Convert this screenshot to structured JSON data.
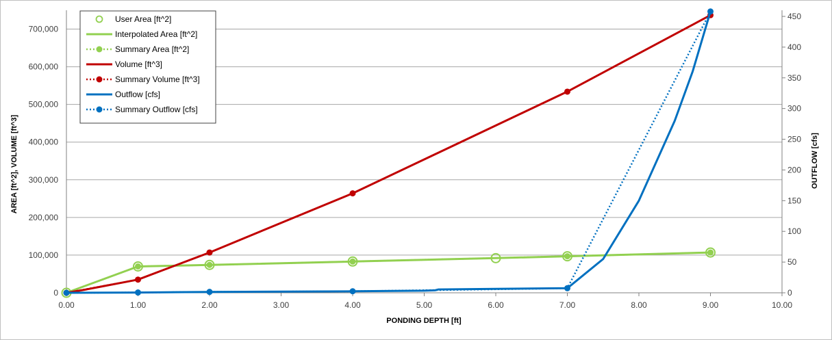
{
  "chart_data": {
    "type": "line",
    "xlabel": "PONDING DEPTH [ft]",
    "ylabel_left": "AREA [ft^2], VOLUME [ft^3]",
    "ylabel_right": "OUTFLOW [cfs]",
    "xlim": [
      0,
      10
    ],
    "ylim_left": [
      0,
      750000
    ],
    "ylim_right": [
      0,
      460
    ],
    "x_ticks": [
      "0.00",
      "1.00",
      "2.00",
      "3.00",
      "4.00",
      "5.00",
      "6.00",
      "7.00",
      "8.00",
      "9.00",
      "10.00"
    ],
    "y_left_ticks": [
      "0",
      "100,000",
      "200,000",
      "300,000",
      "400,000",
      "500,000",
      "600,000",
      "700,000"
    ],
    "y_right_ticks": [
      "0",
      "50",
      "100",
      "150",
      "200",
      "250",
      "300",
      "350",
      "400",
      "450"
    ],
    "grid": "horizontal",
    "legend_position": "top-left",
    "colors": {
      "area": "#92d050",
      "volume": "#c00000",
      "outflow": "#0070c0"
    },
    "series": [
      {
        "name": "User Area [ft^2]",
        "axis": "left",
        "style": "markers-open",
        "x": [
          0,
          1,
          2,
          4,
          6,
          7,
          9
        ],
        "y": [
          0,
          70000,
          74000,
          83000,
          92000,
          97000,
          107000
        ]
      },
      {
        "name": "Interpolated Area [ft^2]",
        "axis": "left",
        "style": "solid",
        "x": [
          0,
          1,
          2,
          4,
          6,
          7,
          9
        ],
        "y": [
          0,
          70000,
          74000,
          83000,
          92000,
          97000,
          107000
        ]
      },
      {
        "name": "Summary Area [ft^2]",
        "axis": "left",
        "style": "dotted-markers",
        "x": [
          0,
          1,
          2,
          4,
          7,
          9
        ],
        "y": [
          0,
          70000,
          74000,
          83000,
          97000,
          107000
        ]
      },
      {
        "name": "Volume [ft^3]",
        "axis": "left",
        "style": "solid",
        "x": [
          0,
          0.25,
          0.5,
          0.75,
          1,
          2,
          4,
          7,
          9
        ],
        "y": [
          0,
          8000,
          17000,
          26000,
          35000,
          107000,
          264000,
          534000,
          737000
        ]
      },
      {
        "name": "Summary Volume [ft^3]",
        "axis": "left",
        "style": "dotted-markers",
        "x": [
          0,
          1,
          2,
          4,
          7,
          9
        ],
        "y": [
          0,
          35000,
          107000,
          264000,
          534000,
          737000
        ]
      },
      {
        "name": "Outflow [cfs]",
        "axis": "right",
        "style": "solid",
        "x": [
          0,
          1,
          2,
          4,
          5,
          5.15,
          5.2,
          6,
          7,
          7.5,
          8,
          8.5,
          8.75,
          9
        ],
        "y": [
          0,
          0.5,
          1.5,
          2.5,
          3.5,
          4,
          5.5,
          6.5,
          7.5,
          55,
          150,
          280,
          360,
          458
        ]
      },
      {
        "name": "Summary Outflow [cfs]",
        "axis": "right",
        "style": "dotted-markers",
        "x": [
          0,
          1,
          2,
          4,
          7,
          9
        ],
        "y": [
          0,
          0.5,
          1.5,
          2.5,
          7.5,
          458
        ]
      }
    ]
  }
}
